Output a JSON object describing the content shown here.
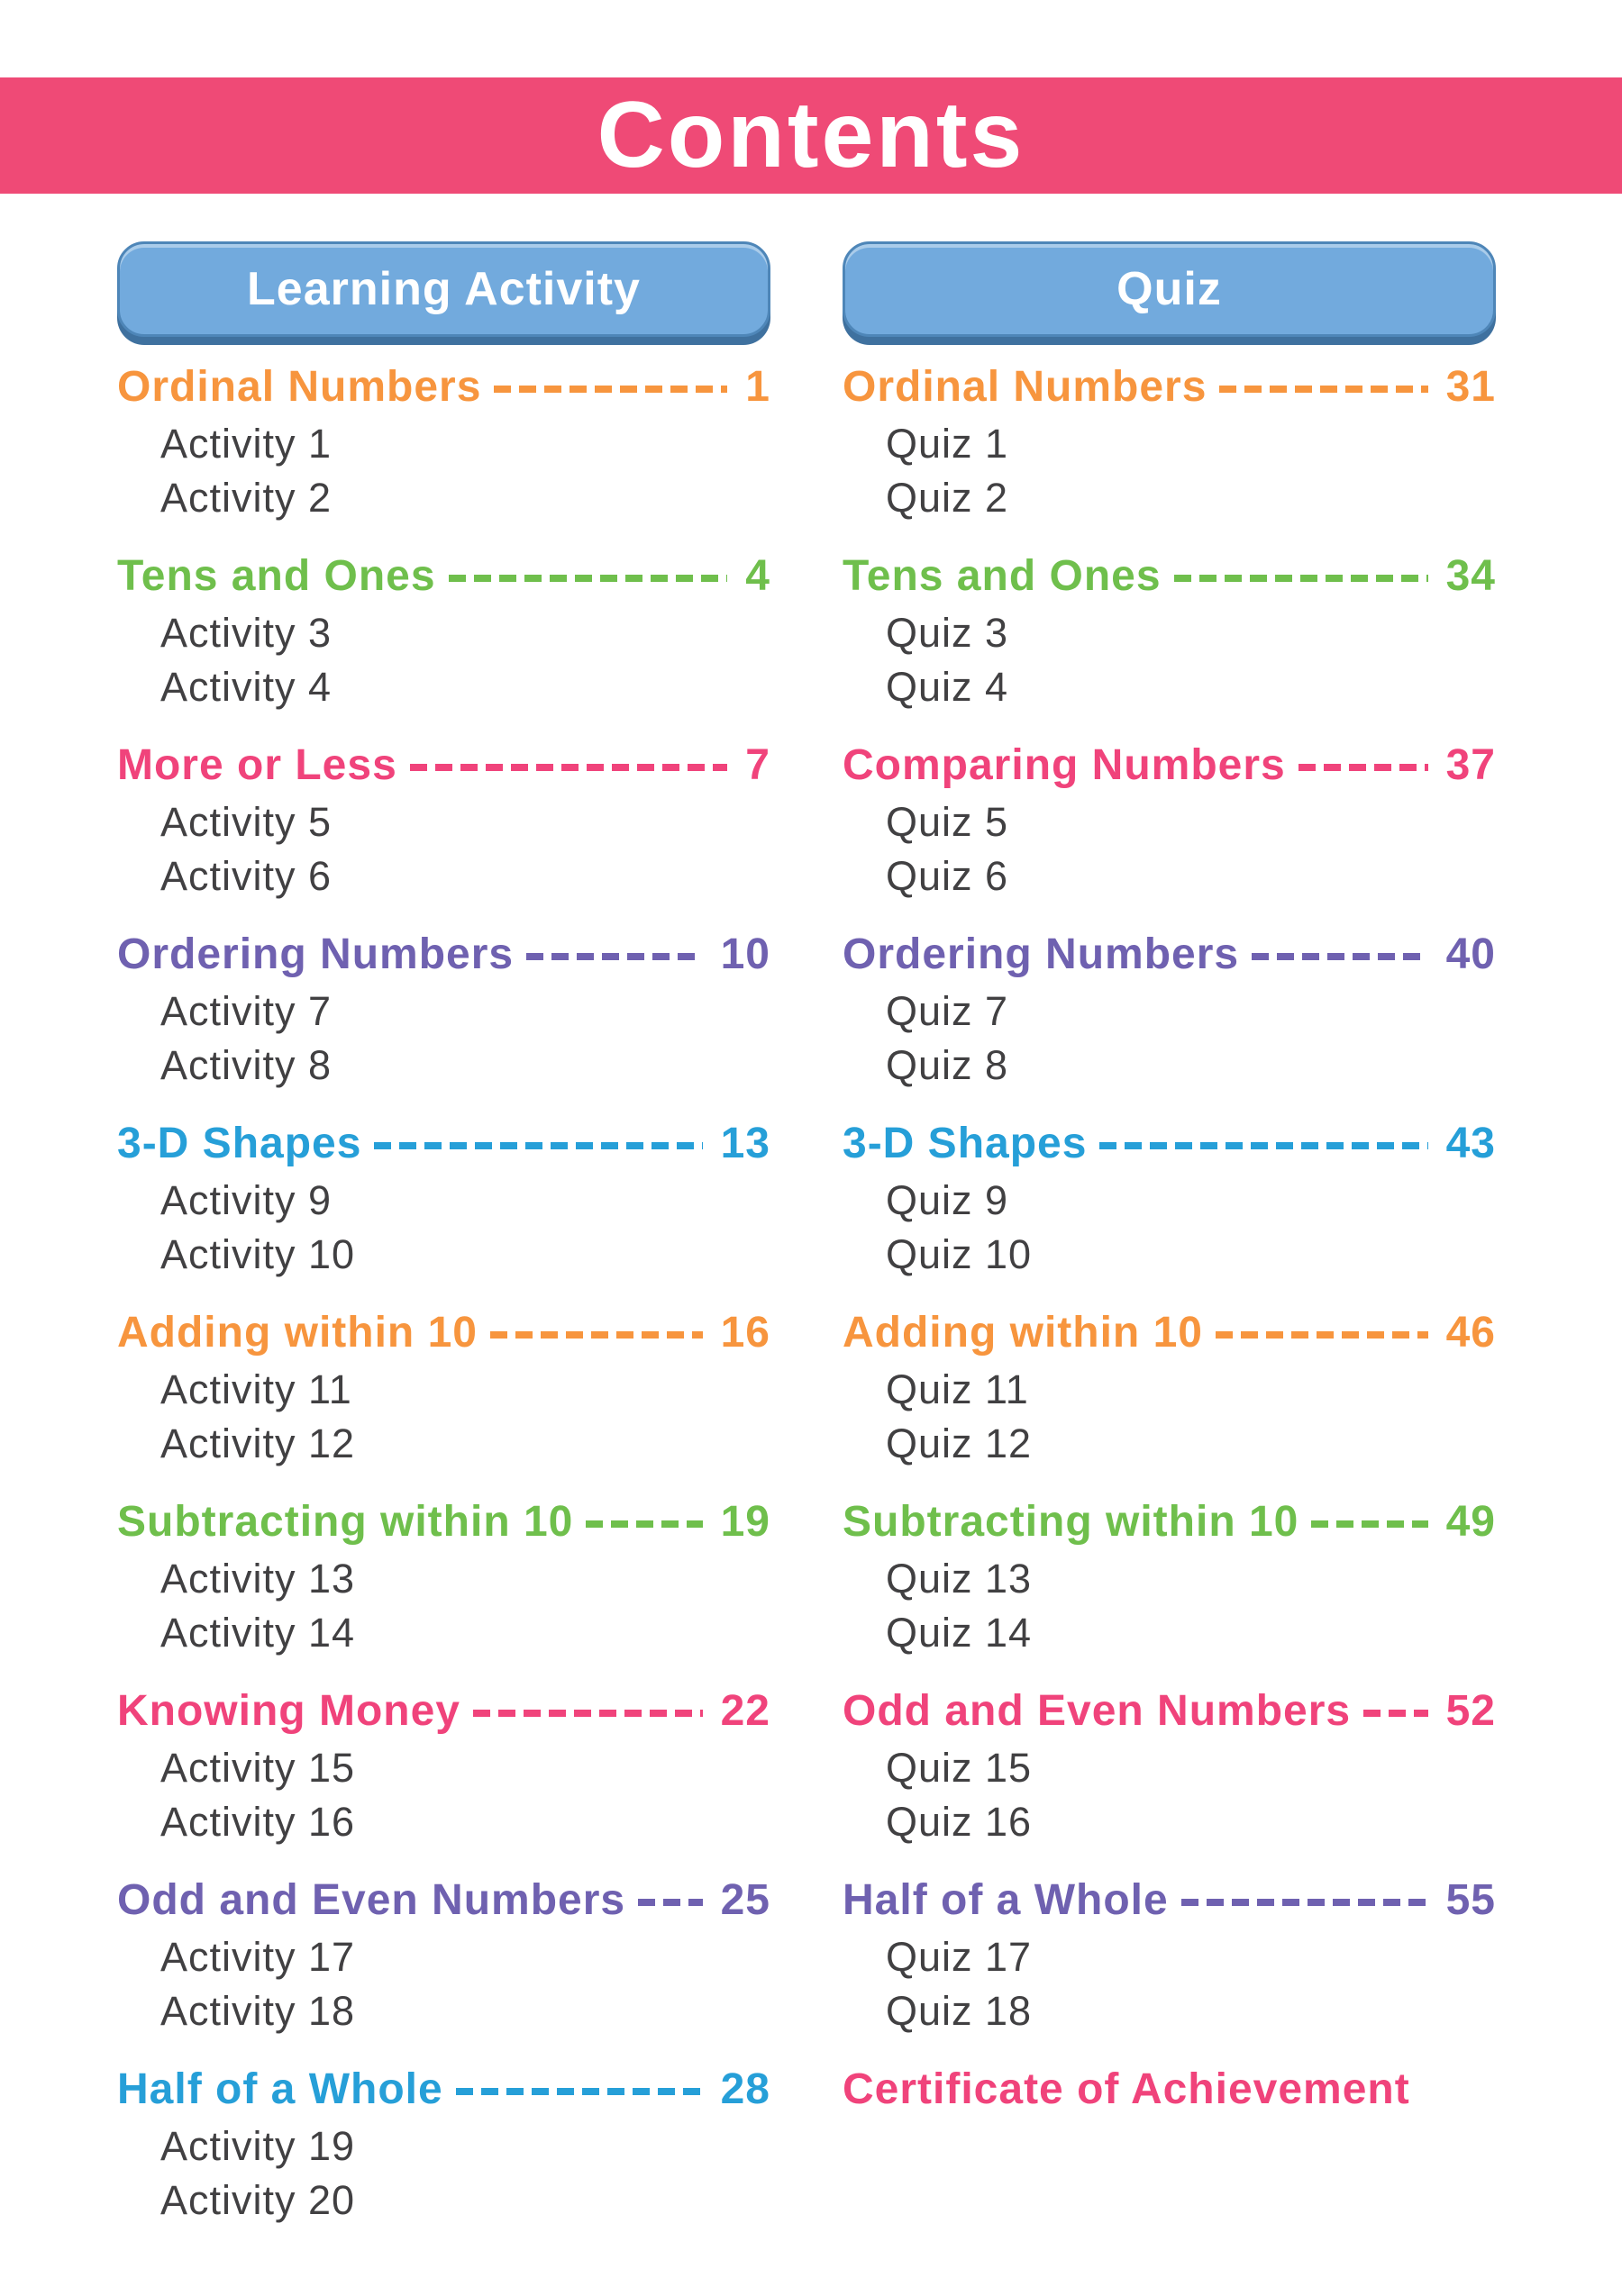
{
  "banner": {
    "title": "Contents",
    "bg": "#EF4A76",
    "text_color": "#FFFFFF"
  },
  "buttons": {
    "bg": "#72AADD",
    "border": "#4E86B8",
    "shadow": "#3F719F",
    "text_color": "#FFFFFF"
  },
  "palette": {
    "orange": "#F7953E",
    "green": "#6FBF4C",
    "pink": "#F0437B",
    "purple": "#6F61B0",
    "blue": "#269FD8",
    "item_text": "#414042"
  },
  "columns": [
    {
      "header": "Learning Activity",
      "sections": [
        {
          "title": "Ordinal Numbers",
          "page": "1",
          "color": "orange",
          "items": [
            "Activity 1",
            "Activity 2"
          ]
        },
        {
          "title": "Tens and Ones",
          "page": "4",
          "color": "green",
          "items": [
            "Activity 3",
            "Activity 4"
          ]
        },
        {
          "title": "More or Less",
          "page": "7",
          "color": "pink",
          "items": [
            "Activity 5",
            "Activity 6"
          ]
        },
        {
          "title": "Ordering Numbers",
          "page": "10",
          "color": "purple",
          "items": [
            "Activity 7",
            "Activity 8"
          ]
        },
        {
          "title": "3-D Shapes",
          "page": "13",
          "color": "blue",
          "items": [
            "Activity 9",
            "Activity 10"
          ]
        },
        {
          "title": "Adding within 10",
          "page": "16",
          "color": "orange",
          "items": [
            "Activity 11",
            "Activity 12"
          ]
        },
        {
          "title": "Subtracting within 10",
          "page": "19",
          "color": "green",
          "items": [
            "Activity 13",
            "Activity 14"
          ]
        },
        {
          "title": "Knowing Money",
          "page": "22",
          "color": "pink",
          "items": [
            "Activity 15",
            "Activity 16"
          ]
        },
        {
          "title": "Odd and Even Numbers",
          "page": "25",
          "color": "purple",
          "items": [
            "Activity 17",
            "Activity 18"
          ]
        },
        {
          "title": "Half of a Whole",
          "page": "28",
          "color": "blue",
          "items": [
            "Activity 19",
            "Activity 20"
          ]
        }
      ]
    },
    {
      "header": "Quiz",
      "sections": [
        {
          "title": "Ordinal Numbers",
          "page": "31",
          "color": "orange",
          "items": [
            "Quiz 1",
            "Quiz 2"
          ]
        },
        {
          "title": "Tens and Ones",
          "page": "34",
          "color": "green",
          "items": [
            "Quiz 3",
            "Quiz 4"
          ]
        },
        {
          "title": "Comparing Numbers",
          "page": "37",
          "color": "pink",
          "items": [
            "Quiz 5",
            "Quiz 6"
          ]
        },
        {
          "title": "Ordering Numbers",
          "page": "40",
          "color": "purple",
          "items": [
            "Quiz 7",
            "Quiz 8"
          ]
        },
        {
          "title": "3-D Shapes",
          "page": "43",
          "color": "blue",
          "items": [
            "Quiz 9",
            "Quiz 10"
          ]
        },
        {
          "title": "Adding within 10",
          "page": "46",
          "color": "orange",
          "items": [
            "Quiz 11",
            "Quiz 12"
          ]
        },
        {
          "title": "Subtracting within 10",
          "page": "49",
          "color": "green",
          "items": [
            "Quiz 13",
            "Quiz 14"
          ]
        },
        {
          "title": "Odd and Even Numbers",
          "page": "52",
          "color": "pink",
          "items": [
            "Quiz 15",
            "Quiz 16"
          ]
        },
        {
          "title": "Half of a Whole",
          "page": "55",
          "color": "purple",
          "items": [
            "Quiz 17",
            "Quiz 18"
          ]
        }
      ],
      "footer": "Certificate of Achievement",
      "footer_color": "pink"
    }
  ]
}
